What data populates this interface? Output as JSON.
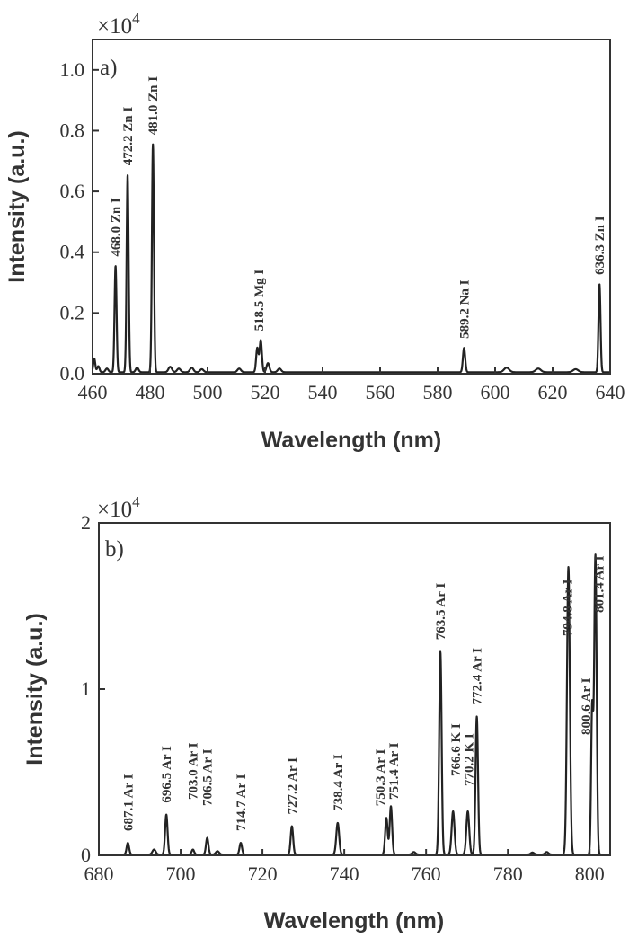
{
  "chart_data": [
    {
      "type": "line",
      "panel_label": "a)",
      "scale_label": "×10",
      "scale_exponent": "4",
      "xlabel": "Wavelength (nm)",
      "ylabel": "Intensity (a.u.)",
      "xlim": [
        460,
        640
      ],
      "ylim": [
        0,
        1.1
      ],
      "x_ticks": [
        460,
        480,
        500,
        520,
        540,
        560,
        580,
        600,
        620,
        640
      ],
      "y_ticks": [
        0.0,
        0.2,
        0.4,
        0.6,
        0.8,
        1.0
      ],
      "y_tick_labels": [
        "0.0",
        "0.2",
        "0.4",
        "0.6",
        "0.8",
        "1.0"
      ],
      "baseline": 0.005,
      "noise": [
        {
          "x": 460.6,
          "y": 0.045,
          "w": 0.35
        },
        {
          "x": 462.0,
          "y": 0.02,
          "w": 0.4
        },
        {
          "x": 465.0,
          "y": 0.012,
          "w": 0.5
        },
        {
          "x": 475.5,
          "y": 0.015,
          "w": 0.5
        },
        {
          "x": 487.0,
          "y": 0.018,
          "w": 0.6
        },
        {
          "x": 490.0,
          "y": 0.012,
          "w": 0.6
        },
        {
          "x": 494.5,
          "y": 0.015,
          "w": 0.6
        },
        {
          "x": 498.0,
          "y": 0.01,
          "w": 0.6
        },
        {
          "x": 511.0,
          "y": 0.012,
          "w": 0.6
        },
        {
          "x": 521.0,
          "y": 0.03,
          "w": 0.5
        },
        {
          "x": 525.0,
          "y": 0.012,
          "w": 0.6
        },
        {
          "x": 604.0,
          "y": 0.015,
          "w": 0.9
        },
        {
          "x": 615.0,
          "y": 0.012,
          "w": 0.9
        },
        {
          "x": 628.0,
          "y": 0.01,
          "w": 0.9
        }
      ],
      "peaks": [
        {
          "x": 468.0,
          "y": 0.35,
          "w": 0.35,
          "label": "468.0 Zn I"
        },
        {
          "x": 472.2,
          "y": 0.65,
          "w": 0.35,
          "label": "472.2 Zn I"
        },
        {
          "x": 481.0,
          "y": 0.75,
          "w": 0.35,
          "label": "481.0 Zn I"
        },
        {
          "x": 517.3,
          "y": 0.08,
          "w": 0.4,
          "label": ""
        },
        {
          "x": 518.5,
          "y": 0.105,
          "w": 0.4,
          "label": "518.5 Mg I"
        },
        {
          "x": 589.2,
          "y": 0.08,
          "w": 0.4,
          "label": "589.2 Na I"
        },
        {
          "x": 636.3,
          "y": 0.29,
          "w": 0.35,
          "label": "636.3 Zn I"
        }
      ]
    },
    {
      "type": "line",
      "panel_label": "b)",
      "scale_label": "×10",
      "scale_exponent": "4",
      "xlabel": "Wavelength (nm)",
      "ylabel": "Intensity (a.u.)",
      "xlim": [
        680,
        805
      ],
      "ylim": [
        0,
        2
      ],
      "x_ticks": [
        680,
        700,
        720,
        740,
        760,
        780,
        800
      ],
      "y_ticks": [
        0,
        1,
        2
      ],
      "y_tick_labels": [
        "0",
        "1",
        "2"
      ],
      "baseline": 0.005,
      "noise": [
        {
          "x": 693.5,
          "y": 0.03,
          "w": 0.4
        },
        {
          "x": 709.0,
          "y": 0.02,
          "w": 0.4
        },
        {
          "x": 757.0,
          "y": 0.015,
          "w": 0.4
        },
        {
          "x": 786.0,
          "y": 0.012,
          "w": 0.4
        },
        {
          "x": 789.5,
          "y": 0.015,
          "w": 0.4
        }
      ],
      "peaks": [
        {
          "x": 687.1,
          "y": 0.07,
          "w": 0.3,
          "label": "687.1 Ar I"
        },
        {
          "x": 696.5,
          "y": 0.24,
          "w": 0.3,
          "label": "696.5 Ar I"
        },
        {
          "x": 703.0,
          "y": 0.03,
          "w": 0.3,
          "label": "703.0 Ar I"
        },
        {
          "x": 706.5,
          "y": 0.1,
          "w": 0.3,
          "label": "706.5 Ar I"
        },
        {
          "x": 714.7,
          "y": 0.07,
          "w": 0.3,
          "label": "714.7 Ar I"
        },
        {
          "x": 727.2,
          "y": 0.17,
          "w": 0.3,
          "label": "727.2 Ar I"
        },
        {
          "x": 738.4,
          "y": 0.19,
          "w": 0.35,
          "label": "738.4 Ar I"
        },
        {
          "x": 750.3,
          "y": 0.22,
          "w": 0.3,
          "label": "750.3 Ar I"
        },
        {
          "x": 751.4,
          "y": 0.29,
          "w": 0.3,
          "label": "751.4 Ar I"
        },
        {
          "x": 763.5,
          "y": 1.22,
          "w": 0.3,
          "label": "763.5 Ar I"
        },
        {
          "x": 766.6,
          "y": 0.26,
          "w": 0.35,
          "label": "766.6 K I"
        },
        {
          "x": 770.2,
          "y": 0.26,
          "w": 0.35,
          "label": "770.2 K I"
        },
        {
          "x": 772.4,
          "y": 0.83,
          "w": 0.3,
          "label": "772.4 Ar I"
        },
        {
          "x": 794.8,
          "y": 1.73,
          "w": 0.35,
          "label": "794.8 Ar I"
        },
        {
          "x": 800.6,
          "y": 0.87,
          "w": 0.25,
          "label": "800.6 Ar I"
        },
        {
          "x": 801.4,
          "y": 1.8,
          "w": 0.3,
          "label": "801.4 Ar I"
        }
      ]
    }
  ]
}
